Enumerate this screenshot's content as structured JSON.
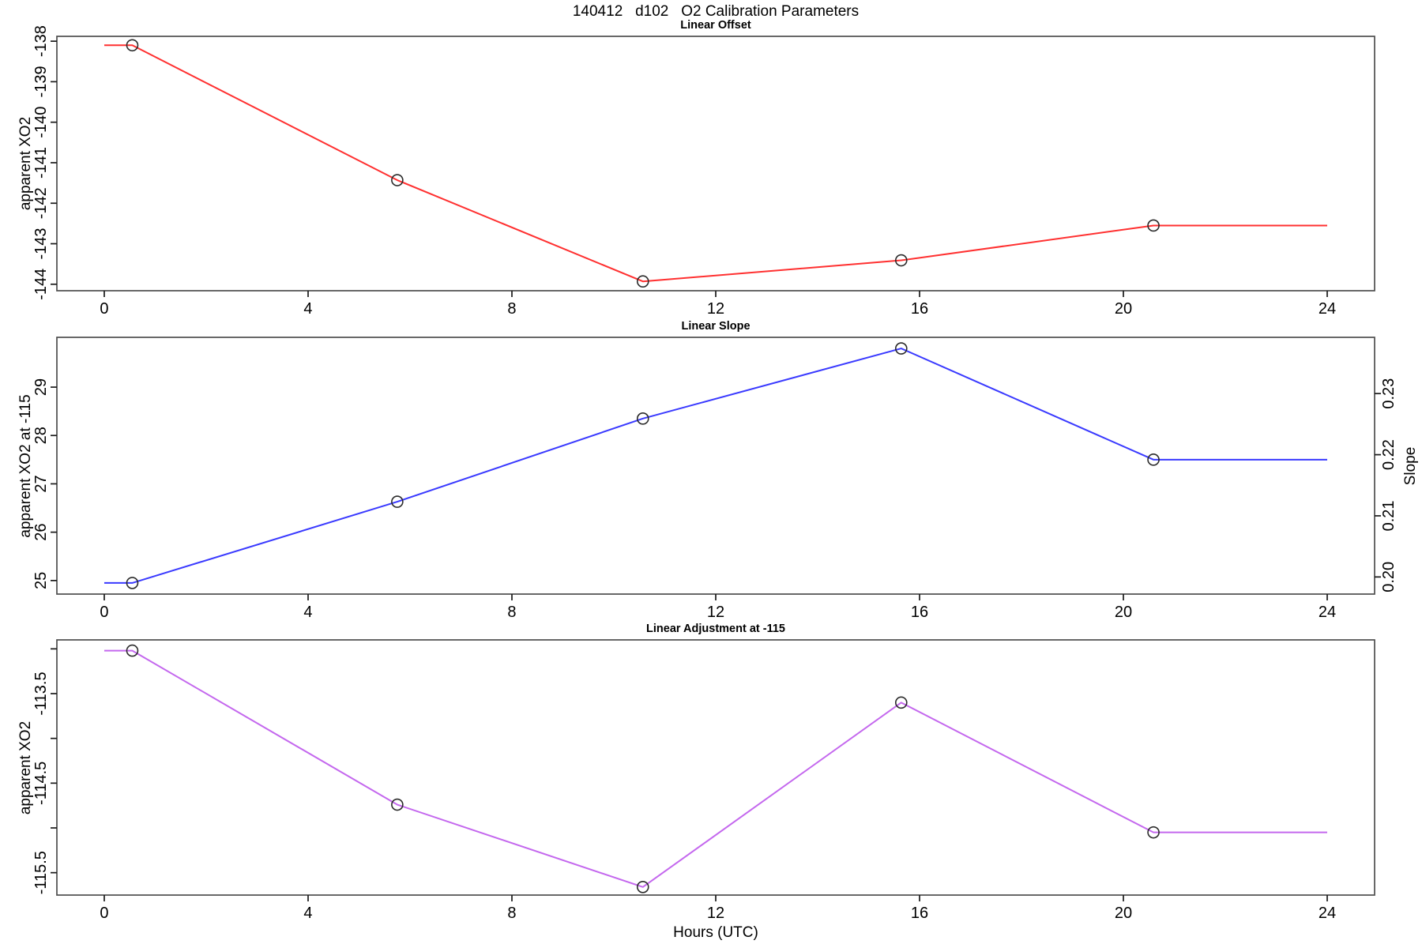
{
  "header": {
    "title": "140412   d102   O2 Calibration Parameters"
  },
  "xlabel": "Hours (UTC)",
  "xlim": [
    -0.93,
    24.93
  ],
  "xticks": [
    {
      "v": 0,
      "label": "0"
    },
    {
      "v": 4,
      "label": "4"
    },
    {
      "v": 8,
      "label": "8"
    },
    {
      "v": 12,
      "label": "12"
    },
    {
      "v": 16,
      "label": "16"
    },
    {
      "v": 20,
      "label": "20"
    },
    {
      "v": 24,
      "label": "24"
    }
  ],
  "style": {
    "marker_stroke": "#2b2b2b",
    "box_color": "#4d4d4d",
    "tick_color": "#1a1a1a"
  },
  "chart_data": [
    {
      "type": "line",
      "panel_title": "Linear Offset",
      "color": "#ff3030",
      "x": [
        0.55,
        5.75,
        10.57,
        15.64,
        20.59
      ],
      "y": [
        -138.1,
        -141.43,
        -143.93,
        -143.41,
        -142.55
      ],
      "line_extends_to_x": [
        0,
        24
      ],
      "ylabel": "apparent XO2",
      "ylim": [
        -144.16,
        -137.88
      ],
      "yticks": [
        {
          "v": -138,
          "label": "-138"
        },
        {
          "v": -139,
          "label": "-139"
        },
        {
          "v": -140,
          "label": "-140"
        },
        {
          "v": -141,
          "label": "-141"
        },
        {
          "v": -142,
          "label": "-142"
        },
        {
          "v": -143,
          "label": "-143"
        },
        {
          "v": -144,
          "label": "-144"
        }
      ]
    },
    {
      "type": "line",
      "panel_title": "Linear Slope",
      "color": "#3a3aff",
      "x": [
        0.55,
        5.75,
        10.57,
        15.64,
        20.59
      ],
      "y": [
        24.95,
        26.63,
        28.35,
        29.8,
        27.5
      ],
      "line_extends_to_x": [
        0,
        24
      ],
      "ylabel": "apparent XO2 at -115",
      "ylim": [
        24.72,
        30.03
      ],
      "yticks": [
        {
          "v": 25,
          "label": "25"
        },
        {
          "v": 26,
          "label": "26"
        },
        {
          "v": 27,
          "label": "27"
        },
        {
          "v": 28,
          "label": "28"
        },
        {
          "v": 29,
          "label": "29"
        }
      ],
      "y2label": "Slope",
      "y2lim": [
        0.1972,
        0.2392
      ],
      "y2ticks": [
        {
          "v": 0.2,
          "label": "0.20"
        },
        {
          "v": 0.21,
          "label": "0.21"
        },
        {
          "v": 0.22,
          "label": "0.22"
        },
        {
          "v": 0.23,
          "label": "0.23"
        }
      ],
      "y2_values_at_points": [
        0.199,
        0.212,
        0.226,
        0.237,
        0.219
      ]
    },
    {
      "type": "line",
      "panel_title": "Linear Adjustment at -115",
      "color": "#c468ee",
      "x": [
        0.55,
        5.75,
        10.57,
        15.64,
        20.59
      ],
      "y": [
        -113.02,
        -114.74,
        -115.66,
        -113.6,
        -115.05
      ],
      "line_extends_to_x": [
        0,
        24
      ],
      "ylabel": "apparent XO2",
      "ylim": [
        -115.75,
        -112.9
      ],
      "yticks": [
        {
          "v": -113.5,
          "label": "-113.5"
        },
        {
          "v": -114.5,
          "label": "-114.5"
        },
        {
          "v": -115.5,
          "label": "-115.5"
        }
      ],
      "yticks_minor": [
        -113,
        -114,
        -115
      ]
    }
  ]
}
